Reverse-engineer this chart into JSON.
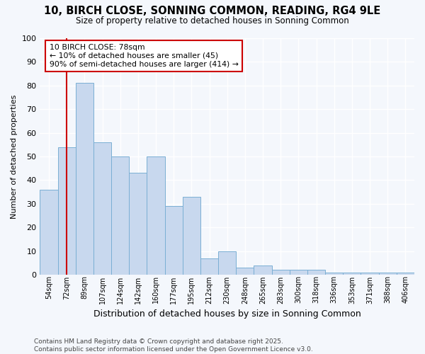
{
  "title_line1": "10, BIRCH CLOSE, SONNING COMMON, READING, RG4 9LE",
  "title_line2": "Size of property relative to detached houses in Sonning Common",
  "xlabel": "Distribution of detached houses by size in Sonning Common",
  "ylabel": "Number of detached properties",
  "bar_labels": [
    "54sqm",
    "72sqm",
    "89sqm",
    "107sqm",
    "124sqm",
    "142sqm",
    "160sqm",
    "177sqm",
    "195sqm",
    "212sqm",
    "230sqm",
    "248sqm",
    "265sqm",
    "283sqm",
    "300sqm",
    "318sqm",
    "336sqm",
    "353sqm",
    "371sqm",
    "388sqm",
    "406sqm"
  ],
  "bar_heights": [
    36,
    54,
    81,
    56,
    50,
    43,
    50,
    29,
    33,
    7,
    10,
    3,
    4,
    2,
    2,
    2,
    1,
    1,
    1,
    1,
    1
  ],
  "bar_color": "#c8d8ee",
  "bar_edge_color": "#7aafd4",
  "red_line_x": 1.0,
  "annotation_title": "10 BIRCH CLOSE: 78sqm",
  "annotation_line1": "← 10% of detached houses are smaller (45)",
  "annotation_line2": "90% of semi-detached houses are larger (414) →",
  "annotation_box_color": "#ffffff",
  "annotation_box_edge": "#cc0000",
  "footer_line1": "Contains HM Land Registry data © Crown copyright and database right 2025.",
  "footer_line2": "Contains public sector information licensed under the Open Government Licence v3.0.",
  "ylim": [
    0,
    100
  ],
  "background_color": "#f4f7fc",
  "plot_bg_color": "#f4f7fc",
  "grid_color": "#ffffff"
}
